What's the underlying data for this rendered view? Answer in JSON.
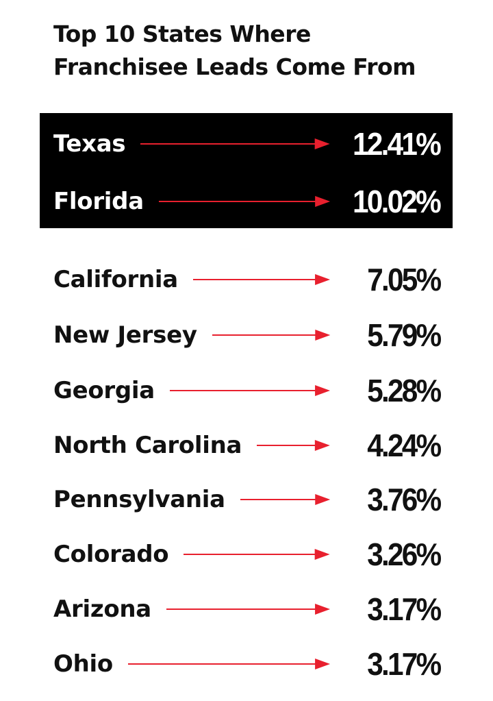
{
  "chart_data": {
    "type": "table",
    "title_lines": [
      "Top 10 States Where",
      "Franchisee Leads Come From"
    ],
    "unit_suffix": "%",
    "accent_color": "#e8202e",
    "highlight_background": "#000000",
    "highlighted_count": 2,
    "rows": [
      {
        "state": "Texas",
        "value": 12.41,
        "label": "12.41%"
      },
      {
        "state": "Florida",
        "value": 10.02,
        "label": "10.02%"
      },
      {
        "state": "California",
        "value": 7.05,
        "label": "7.05%"
      },
      {
        "state": "New Jersey",
        "value": 5.79,
        "label": "5.79%"
      },
      {
        "state": "Georgia",
        "value": 5.28,
        "label": "5.28%"
      },
      {
        "state": "North Carolina",
        "value": 4.24,
        "label": "4.24%"
      },
      {
        "state": "Pennsylvania",
        "value": 3.76,
        "label": "3.76%"
      },
      {
        "state": "Colorado",
        "value": 3.26,
        "label": "3.26%"
      },
      {
        "state": "Arizona",
        "value": 3.17,
        "label": "3.17%"
      },
      {
        "state": "Ohio",
        "value": 3.17,
        "label": "3.17%"
      }
    ]
  }
}
